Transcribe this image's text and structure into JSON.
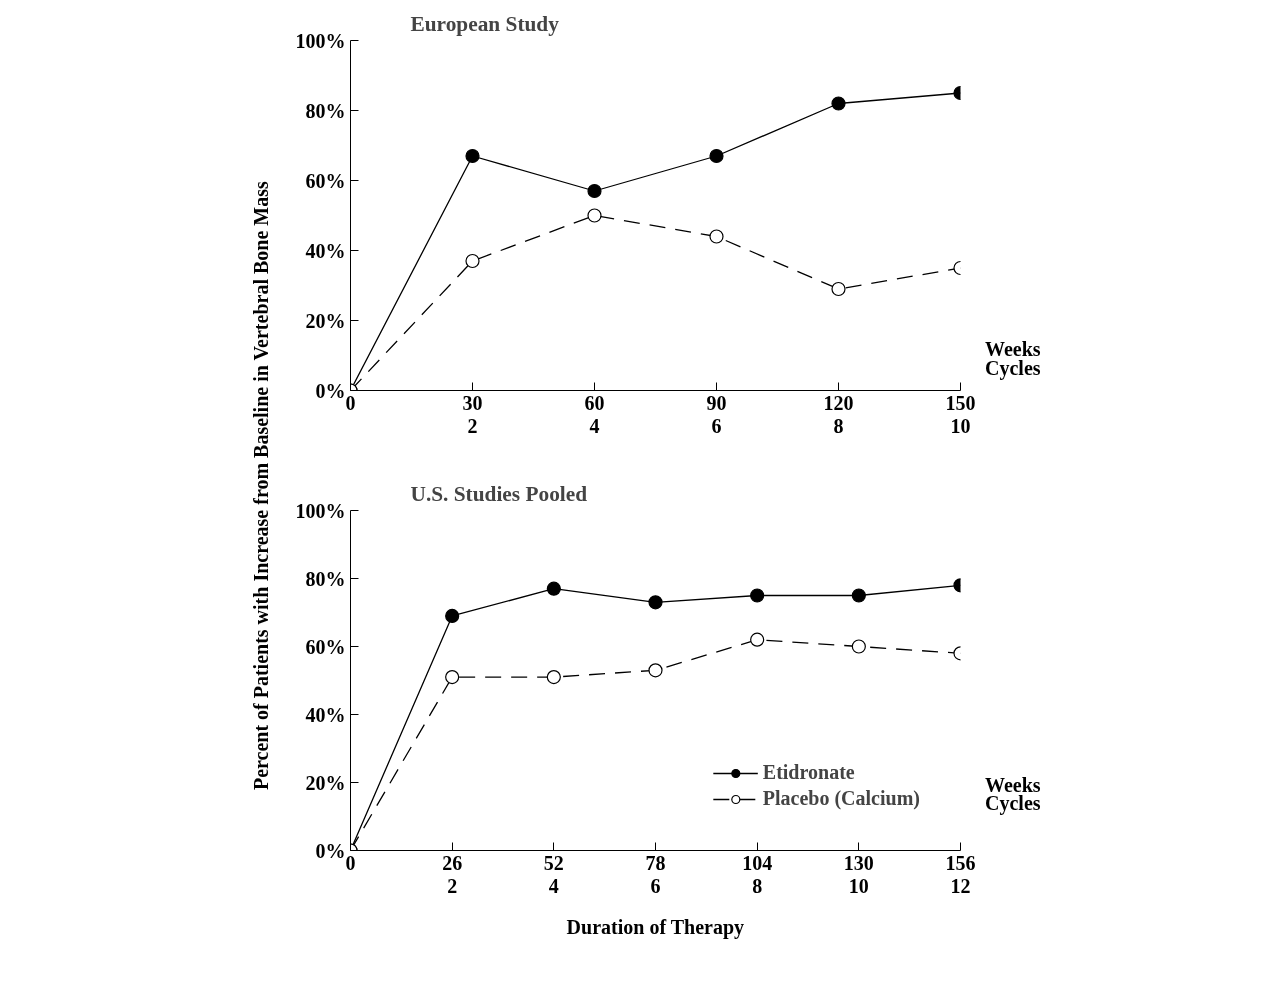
{
  "chart_data": [
    {
      "type": "line",
      "title": "European Study",
      "ylabel": "Percent of Patients with Increase from Baseline in Vertebral Bone Mass",
      "x": [
        0,
        30,
        60,
        90,
        120,
        150
      ],
      "xlim": [
        0,
        150
      ],
      "xticks": [
        0,
        30,
        60,
        90,
        120,
        150
      ],
      "x2lim": [
        0,
        10
      ],
      "x2ticks": [
        2,
        4,
        6,
        8,
        10
      ],
      "ylim": [
        0,
        100
      ],
      "yticks": [
        {
          "value": 0,
          "label": "0%"
        },
        {
          "value": 20,
          "label": "20%"
        },
        {
          "value": 40,
          "label": "40%"
        },
        {
          "value": 60,
          "label": "60%"
        },
        {
          "value": 80,
          "label": "80%"
        },
        {
          "value": 100,
          "label": "100%"
        }
      ],
      "series": [
        {
          "color": "#000000",
          "line_style": "solid",
          "values": [
            0,
            67,
            57,
            67,
            82,
            85
          ]
        },
        {
          "color": "#000000",
          "line_style": "dashed",
          "values": [
            0,
            37,
            50,
            44,
            29,
            35
          ]
        }
      ],
      "marker": "circle",
      "grid": false,
      "legend": false,
      "annotations": [
        "Weeks",
        "Cycles"
      ]
    },
    {
      "type": "line",
      "title": "U.S. Studies Pooled",
      "xlabel": "Duration of Therapy",
      "x": [
        0,
        26,
        52,
        78,
        104,
        130,
        156
      ],
      "xlim": [
        0,
        156
      ],
      "xticks": [
        0,
        26,
        52,
        78,
        104,
        130,
        156
      ],
      "x2lim": [
        0,
        12
      ],
      "x2ticks": [
        2,
        4,
        6,
        8,
        10,
        12
      ],
      "ylim": [
        0,
        100
      ],
      "yticks": [
        {
          "value": 0,
          "label": "0%"
        },
        {
          "value": 20,
          "label": "20%"
        },
        {
          "value": 40,
          "label": "40%"
        },
        {
          "value": 60,
          "label": "60%"
        },
        {
          "value": 80,
          "label": "80%"
        },
        {
          "value": 100,
          "label": "100%"
        }
      ],
      "series": [
        {
          "name": "Etidronate",
          "color": "#000000",
          "line_style": "solid",
          "values": [
            0,
            69,
            77,
            73,
            75,
            75,
            78
          ]
        },
        {
          "name": "Placebo (Calcium)",
          "color": "#000000",
          "line_style": "dashed",
          "values": [
            0,
            51,
            51,
            53,
            62,
            60,
            58
          ]
        }
      ],
      "marker": "circle",
      "grid": false,
      "legend": "bottom right",
      "annotations": [
        "Weeks",
        "Cycles"
      ]
    }
  ]
}
